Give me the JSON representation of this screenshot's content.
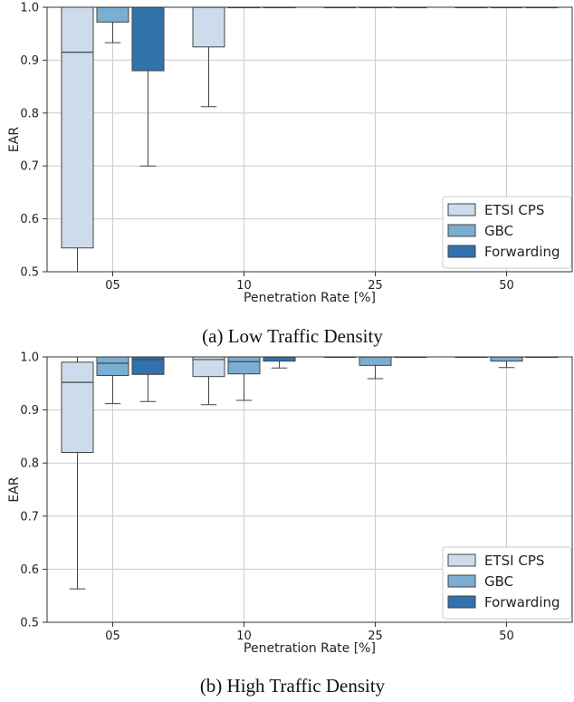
{
  "chart_data": [
    {
      "type": "box",
      "caption": "(a) Low Traffic Density",
      "xlabel": "Penetration Rate [%]",
      "ylabel": "EAR",
      "ylim": [
        0.5,
        1.0
      ],
      "yticks": [
        "0.5",
        "0.6",
        "0.7",
        "0.8",
        "0.9",
        "1.0"
      ],
      "categories": [
        "05",
        "10",
        "25",
        "50"
      ],
      "grid": true,
      "legend_position": "lower-right",
      "series": [
        {
          "name": "ETSI CPS",
          "color": "#cddcec",
          "boxes": [
            {
              "whislo": 0.5,
              "q1": 0.545,
              "med": 0.915,
              "q3": 1.0,
              "whishi": 1.0
            },
            {
              "whislo": 0.812,
              "q1": 0.925,
              "med": 1.0,
              "q3": 1.0,
              "whishi": 1.0
            },
            {
              "whislo": 1.0,
              "q1": 1.0,
              "med": 1.0,
              "q3": 1.0,
              "whishi": 1.0
            },
            {
              "whislo": 1.0,
              "q1": 1.0,
              "med": 1.0,
              "q3": 1.0,
              "whishi": 1.0
            }
          ]
        },
        {
          "name": "GBC",
          "color": "#7aaed3",
          "boxes": [
            {
              "whislo": 0.933,
              "q1": 0.972,
              "med": 1.0,
              "q3": 1.0,
              "whishi": 1.0
            },
            {
              "whislo": 1.0,
              "q1": 1.0,
              "med": 1.0,
              "q3": 1.0,
              "whishi": 1.0
            },
            {
              "whislo": 1.0,
              "q1": 1.0,
              "med": 1.0,
              "q3": 1.0,
              "whishi": 1.0
            },
            {
              "whislo": 1.0,
              "q1": 1.0,
              "med": 1.0,
              "q3": 1.0,
              "whishi": 1.0
            }
          ]
        },
        {
          "name": "Forwarding",
          "color": "#3172ad",
          "boxes": [
            {
              "whislo": 0.7,
              "q1": 0.88,
              "med": 1.0,
              "q3": 1.0,
              "whishi": 1.0
            },
            {
              "whislo": 1.0,
              "q1": 1.0,
              "med": 1.0,
              "q3": 1.0,
              "whishi": 1.0
            },
            {
              "whislo": 1.0,
              "q1": 1.0,
              "med": 1.0,
              "q3": 1.0,
              "whishi": 1.0
            },
            {
              "whislo": 1.0,
              "q1": 1.0,
              "med": 1.0,
              "q3": 1.0,
              "whishi": 1.0
            }
          ]
        }
      ]
    },
    {
      "type": "box",
      "caption": "(b) High Traffic Density",
      "xlabel": "Penetration Rate [%]",
      "ylabel": "EAR",
      "ylim": [
        0.5,
        1.0
      ],
      "yticks": [
        "0.5",
        "0.6",
        "0.7",
        "0.8",
        "0.9",
        "1.0"
      ],
      "categories": [
        "05",
        "10",
        "25",
        "50"
      ],
      "grid": true,
      "legend_position": "lower-right",
      "series": [
        {
          "name": "ETSI CPS",
          "color": "#cddcec",
          "boxes": [
            {
              "whislo": 0.563,
              "q1": 0.82,
              "med": 0.952,
              "q3": 0.99,
              "whishi": 1.0
            },
            {
              "whislo": 0.91,
              "q1": 0.963,
              "med": 0.995,
              "q3": 1.0,
              "whishi": 1.0
            },
            {
              "whislo": 1.0,
              "q1": 1.0,
              "med": 1.0,
              "q3": 1.0,
              "whishi": 1.0
            },
            {
              "whislo": 1.0,
              "q1": 1.0,
              "med": 1.0,
              "q3": 1.0,
              "whishi": 1.0
            }
          ]
        },
        {
          "name": "GBC",
          "color": "#7aaed3",
          "boxes": [
            {
              "whislo": 0.912,
              "q1": 0.965,
              "med": 0.988,
              "q3": 1.0,
              "whishi": 1.0
            },
            {
              "whislo": 0.918,
              "q1": 0.968,
              "med": 0.991,
              "q3": 1.0,
              "whishi": 1.0
            },
            {
              "whislo": 0.959,
              "q1": 0.984,
              "med": 1.0,
              "q3": 1.0,
              "whishi": 1.0
            },
            {
              "whislo": 0.98,
              "q1": 0.992,
              "med": 1.0,
              "q3": 1.0,
              "whishi": 1.0
            }
          ]
        },
        {
          "name": "Forwarding",
          "color": "#3172ad",
          "boxes": [
            {
              "whislo": 0.916,
              "q1": 0.967,
              "med": 0.995,
              "q3": 1.0,
              "whishi": 1.0
            },
            {
              "whislo": 0.979,
              "q1": 0.992,
              "med": 1.0,
              "q3": 1.0,
              "whishi": 1.0
            },
            {
              "whislo": 1.0,
              "q1": 1.0,
              "med": 1.0,
              "q3": 1.0,
              "whishi": 1.0
            },
            {
              "whislo": 1.0,
              "q1": 1.0,
              "med": 1.0,
              "q3": 1.0,
              "whishi": 1.0
            }
          ]
        }
      ]
    }
  ]
}
